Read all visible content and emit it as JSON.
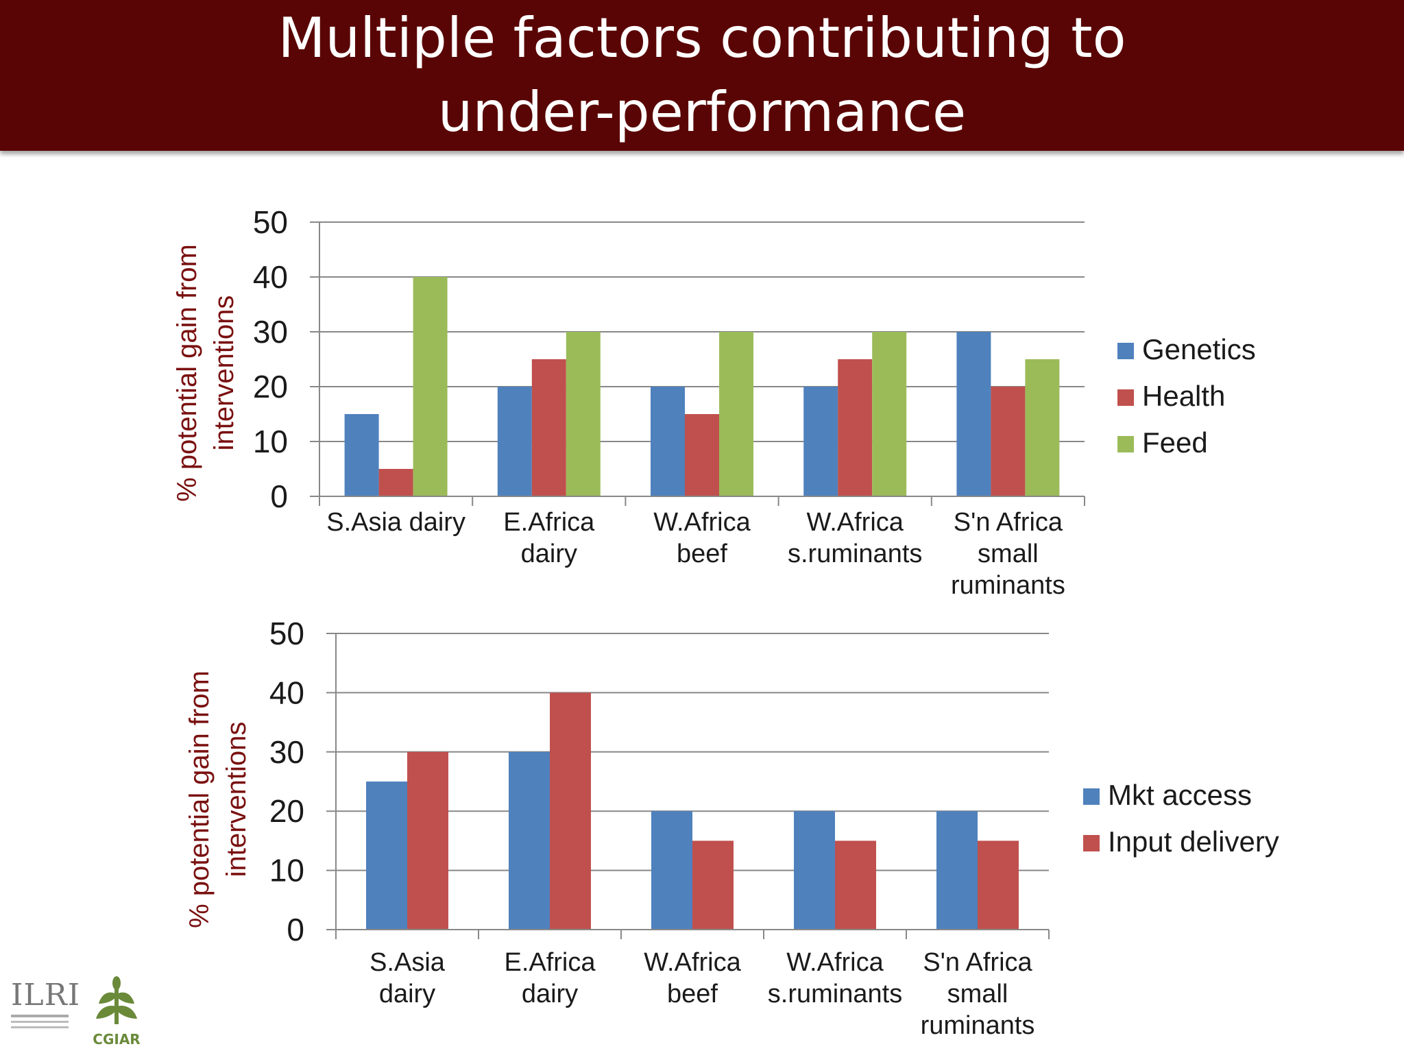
{
  "title": {
    "line1": "Multiple factors contributing to",
    "line2": "under-performance"
  },
  "colors": {
    "title_bar": "#5a0505",
    "ylabel": "#7a1010",
    "genetics": "#4f81bd",
    "health": "#c0504d",
    "feed": "#9bbb59",
    "mkt_access": "#4f81bd",
    "input_delivery": "#c0504d"
  },
  "logos": {
    "ilri": "ILRI",
    "cgiar": "CGIAR"
  },
  "chart_data": [
    {
      "type": "bar",
      "ylabel": "% potential gain from interventions",
      "ylim": [
        0,
        50
      ],
      "yticks": [
        0,
        10,
        20,
        30,
        40,
        50
      ],
      "grid": true,
      "legend_position": "right",
      "categories": [
        [
          "S.Asia dairy"
        ],
        [
          "E.Africa",
          "dairy"
        ],
        [
          "W.Africa",
          "beef"
        ],
        [
          "W.Africa",
          "s.ruminants"
        ],
        [
          "S'n Africa",
          "small",
          "ruminants"
        ]
      ],
      "series": [
        {
          "name": "Genetics",
          "color": "#4f81bd",
          "values": [
            15,
            20,
            20,
            20,
            30
          ]
        },
        {
          "name": "Health",
          "color": "#c0504d",
          "values": [
            5,
            25,
            15,
            25,
            20
          ]
        },
        {
          "name": "Feed",
          "color": "#9bbb59",
          "values": [
            40,
            30,
            30,
            30,
            25
          ]
        }
      ]
    },
    {
      "type": "bar",
      "ylabel": "% potential gain from interventions",
      "ylim": [
        0,
        50
      ],
      "yticks": [
        0,
        10,
        20,
        30,
        40,
        50
      ],
      "grid": true,
      "legend_position": "right",
      "categories": [
        [
          "S.Asia",
          "dairy"
        ],
        [
          "E.Africa",
          "dairy"
        ],
        [
          "W.Africa",
          "beef"
        ],
        [
          "W.Africa",
          "s.ruminants"
        ],
        [
          "S'n Africa",
          "small",
          "ruminants"
        ]
      ],
      "series": [
        {
          "name": "Mkt access",
          "color": "#4f81bd",
          "values": [
            25,
            30,
            20,
            20,
            20
          ]
        },
        {
          "name": "Input delivery",
          "color": "#c0504d",
          "values": [
            30,
            40,
            15,
            15,
            15
          ]
        }
      ]
    }
  ]
}
